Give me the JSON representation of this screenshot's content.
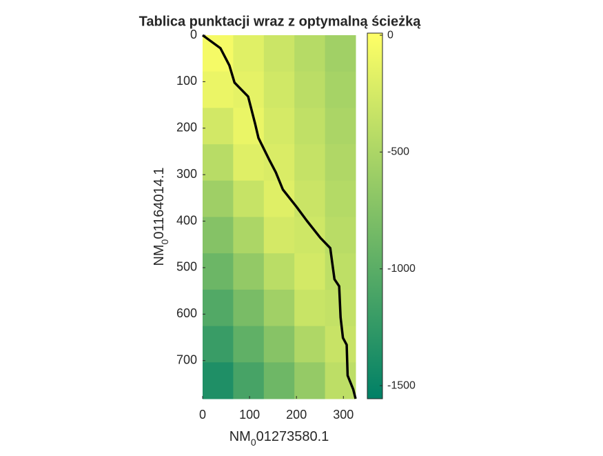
{
  "chart_data": {
    "type": "heatmap",
    "title": "Tablica punktacji wraz z optymalną ścieżką",
    "xlabel": [
      "NM",
      "0",
      "01273580.1"
    ],
    "ylabel": [
      "NM",
      "0",
      "01164014.1"
    ],
    "xlim": [
      0,
      326
    ],
    "ylim": [
      0,
      782
    ],
    "y_reversed": true,
    "xticks": [
      0,
      100,
      200,
      300
    ],
    "yticks": [
      0,
      100,
      200,
      300,
      400,
      500,
      600,
      700
    ],
    "clim": [
      -1556,
      9
    ],
    "cticks": [
      -1500,
      -1000,
      -500,
      0
    ],
    "colormap": [
      "#008066",
      "#ffff66"
    ],
    "z": [
      [
        -50,
        -180,
        -309,
        -438,
        -568
      ],
      [
        -113,
        -150,
        -280,
        -409,
        -538
      ],
      [
        -269,
        -120,
        -250,
        -379,
        -509
      ],
      [
        -427,
        -185,
        -219,
        -349,
        -478
      ],
      [
        -583,
        -341,
        -190,
        -319,
        -449
      ],
      [
        -740,
        -498,
        -256,
        -290,
        -420
      ],
      [
        -896,
        -654,
        -412,
        -261,
        -390
      ],
      [
        -1053,
        -811,
        -569,
        -328,
        -359
      ],
      [
        -1209,
        -967,
        -725,
        -483,
        -330
      ],
      [
        -1365,
        -1123,
        -881,
        -639,
        -398
      ]
    ],
    "path": {
      "color": "#000000",
      "x": [
        0,
        38,
        57,
        68,
        97,
        112,
        119,
        141,
        156,
        171,
        200,
        222,
        251,
        272,
        276,
        281,
        291,
        294,
        299,
        307,
        309,
        321,
        326
      ],
      "y": [
        0,
        28,
        65,
        102,
        132,
        191,
        221,
        266,
        295,
        332,
        369,
        399,
        436,
        458,
        488,
        525,
        540,
        607,
        651,
        666,
        732,
        762,
        782
      ]
    }
  }
}
